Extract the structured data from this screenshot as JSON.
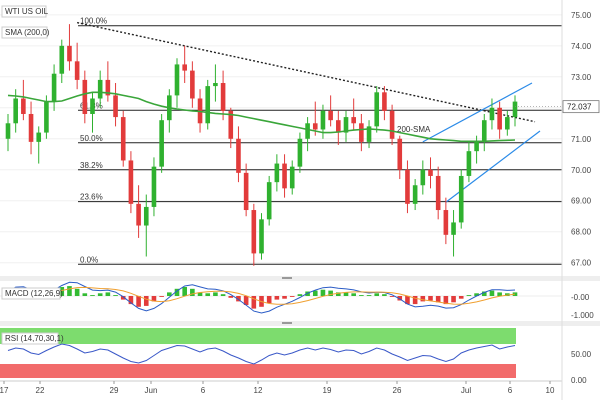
{
  "chart_data": [
    {
      "type": "candlestick",
      "legend": {
        "instrument": "WTI US OIL",
        "indicator": "SMA (200,0)"
      },
      "price_axis": {
        "ticks": [
          75.0,
          74.0,
          73.0,
          72.0,
          71.0,
          70.0,
          69.0,
          68.0,
          67.0
        ],
        "ylim": [
          66.7,
          75.35
        ]
      },
      "current_price": {
        "value": 72.037,
        "label": "72.037"
      },
      "fib_levels": [
        {
          "label": "100.0%",
          "price": 74.65
        },
        {
          "label": "61.8%",
          "price": 71.92
        },
        {
          "label": "50.0%",
          "price": 70.87
        },
        {
          "label": "38.2%",
          "price": 70.0
        },
        {
          "label": "23.6%",
          "price": 68.97
        },
        {
          "label": "0.0%",
          "price": 66.95
        }
      ],
      "annotation": "200-SMA",
      "x_axis": {
        "ticks": [
          "17",
          "22",
          "29",
          "Jun",
          "6",
          "12",
          "19",
          "26",
          "Jul",
          "6",
          "10"
        ]
      },
      "candles": [
        [
          71.0,
          71.8,
          70.6,
          71.5
        ],
        [
          71.5,
          72.6,
          71.2,
          72.3
        ],
        [
          72.3,
          72.9,
          71.6,
          71.8
        ],
        [
          71.8,
          72.2,
          70.5,
          70.9
        ],
        [
          70.9,
          71.4,
          70.2,
          71.2
        ],
        [
          71.2,
          72.4,
          71.0,
          72.2
        ],
        [
          72.2,
          73.4,
          71.9,
          73.1
        ],
        [
          73.1,
          74.2,
          72.8,
          74.0
        ],
        [
          74.0,
          74.7,
          73.2,
          73.5
        ],
        [
          73.5,
          74.1,
          72.6,
          72.9
        ],
        [
          72.9,
          73.2,
          71.5,
          71.8
        ],
        [
          71.8,
          72.5,
          71.2,
          72.3
        ],
        [
          72.3,
          73.2,
          72.0,
          72.9
        ],
        [
          72.9,
          73.5,
          72.2,
          72.4
        ],
        [
          72.4,
          72.8,
          71.4,
          71.7
        ],
        [
          71.7,
          71.9,
          70.1,
          70.3
        ],
        [
          70.3,
          70.6,
          68.6,
          68.9
        ],
        [
          68.9,
          69.5,
          67.8,
          68.2
        ],
        [
          68.2,
          69.2,
          67.2,
          68.8
        ],
        [
          68.8,
          70.4,
          68.5,
          70.1
        ],
        [
          70.1,
          71.8,
          69.9,
          71.6
        ],
        [
          71.6,
          72.6,
          71.2,
          72.4
        ],
        [
          72.4,
          73.6,
          72.0,
          73.4
        ],
        [
          73.4,
          74.0,
          72.8,
          73.2
        ],
        [
          73.2,
          73.5,
          72.0,
          72.3
        ],
        [
          72.3,
          72.6,
          71.2,
          71.5
        ],
        [
          71.5,
          72.9,
          71.3,
          72.7
        ],
        [
          72.7,
          73.4,
          72.2,
          72.8
        ],
        [
          72.8,
          73.2,
          71.6,
          71.9
        ],
        [
          71.9,
          72.0,
          70.7,
          71.0
        ],
        [
          71.0,
          71.4,
          69.6,
          69.9
        ],
        [
          69.9,
          70.2,
          68.5,
          68.7
        ],
        [
          68.7,
          68.9,
          66.9,
          67.3
        ],
        [
          67.3,
          68.6,
          67.1,
          68.4
        ],
        [
          68.4,
          69.8,
          68.2,
          69.6
        ],
        [
          69.6,
          70.5,
          69.3,
          70.2
        ],
        [
          70.2,
          70.5,
          69.1,
          69.4
        ],
        [
          69.4,
          70.3,
          69.2,
          70.1
        ],
        [
          70.1,
          71.2,
          69.9,
          71.0
        ],
        [
          71.0,
          71.7,
          70.6,
          71.5
        ],
        [
          71.5,
          72.2,
          71.1,
          71.3
        ],
        [
          71.3,
          72.1,
          71.0,
          71.9
        ],
        [
          71.9,
          72.4,
          71.4,
          71.6
        ],
        [
          71.6,
          71.9,
          70.8,
          71.2
        ],
        [
          71.2,
          71.9,
          70.9,
          71.7
        ],
        [
          71.7,
          72.3,
          71.3,
          71.5
        ],
        [
          71.5,
          71.8,
          70.6,
          70.9
        ],
        [
          70.9,
          71.6,
          70.7,
          71.4
        ],
        [
          71.4,
          72.7,
          71.2,
          72.5
        ],
        [
          72.5,
          72.7,
          71.6,
          71.9
        ],
        [
          71.9,
          72.1,
          70.8,
          71.0
        ],
        [
          71.0,
          71.1,
          69.7,
          70.0
        ],
        [
          70.0,
          70.3,
          68.6,
          68.9
        ],
        [
          68.9,
          69.7,
          68.7,
          69.5
        ],
        [
          69.5,
          70.3,
          69.2,
          70.0
        ],
        [
          70.0,
          70.4,
          69.4,
          69.8
        ],
        [
          69.8,
          70.1,
          68.4,
          68.7
        ],
        [
          68.7,
          69.1,
          67.6,
          67.9
        ],
        [
          67.9,
          68.7,
          67.2,
          68.3
        ],
        [
          68.3,
          70.0,
          68.1,
          69.8
        ],
        [
          69.8,
          70.9,
          69.6,
          70.6
        ],
        [
          70.6,
          71.1,
          70.2,
          70.9
        ],
        [
          70.9,
          71.8,
          70.6,
          71.6
        ],
        [
          71.6,
          72.3,
          71.3,
          72.0
        ],
        [
          72.0,
          72.2,
          71.0,
          71.3
        ],
        [
          71.3,
          71.9,
          71.1,
          71.7
        ],
        [
          71.7,
          72.4,
          71.4,
          72.2
        ]
      ],
      "sma_200": [
        72.4,
        72.38,
        72.35,
        72.3,
        72.25,
        72.2,
        72.2,
        72.22,
        72.3,
        72.38,
        72.45,
        72.5,
        72.5,
        72.48,
        72.45,
        72.4,
        72.35,
        72.3,
        72.2,
        72.12,
        72.05,
        72.0,
        71.96,
        71.93,
        71.9,
        71.88,
        71.85,
        71.82,
        71.8,
        71.78,
        71.75,
        71.7,
        71.65,
        71.6,
        71.55,
        71.5,
        71.45,
        71.4,
        71.35,
        71.3,
        71.25,
        71.2,
        71.2,
        71.22,
        71.25,
        71.28,
        71.3,
        71.32,
        71.3,
        71.28,
        71.25,
        71.2,
        71.15,
        71.1,
        71.05,
        71.0,
        70.98,
        70.96,
        70.94,
        70.92,
        70.92,
        70.92,
        70.92,
        70.93,
        70.94,
        70.95,
        70.96
      ]
    },
    {
      "type": "macd",
      "label": "MACD (12,26,9)",
      "axis_ticks": [
        "-0.00",
        "-1.000"
      ],
      "histogram": [
        0.3,
        0.45,
        0.3,
        0.1,
        -0.05,
        0.1,
        0.3,
        0.5,
        0.55,
        0.4,
        0.15,
        0.05,
        0.15,
        0.2,
        0.05,
        -0.2,
        -0.45,
        -0.6,
        -0.55,
        -0.3,
        -0.05,
        0.2,
        0.4,
        0.5,
        0.4,
        0.2,
        0.15,
        0.2,
        0.1,
        -0.1,
        -0.3,
        -0.5,
        -0.7,
        -0.6,
        -0.4,
        -0.2,
        -0.15,
        -0.05,
        0.1,
        0.25,
        0.3,
        0.35,
        0.3,
        0.2,
        0.2,
        0.15,
        0.05,
        0.05,
        0.15,
        0.1,
        -0.05,
        -0.25,
        -0.45,
        -0.45,
        -0.3,
        -0.25,
        -0.35,
        -0.45,
        -0.35,
        -0.15,
        0.05,
        0.15,
        0.25,
        0.3,
        0.2,
        0.15,
        0.2
      ]
    },
    {
      "type": "rsi",
      "label": "RSI (14,70,30,1)",
      "axis_ticks": [
        "50.00",
        "0.00"
      ],
      "values": [
        55,
        60,
        58,
        50,
        47,
        55,
        62,
        68,
        65,
        58,
        50,
        53,
        58,
        56,
        48,
        40,
        33,
        30,
        35,
        45,
        55,
        60,
        65,
        64,
        58,
        52,
        58,
        60,
        54,
        46,
        40,
        33,
        28,
        36,
        45,
        50,
        46,
        50,
        56,
        60,
        56,
        60,
        57,
        52,
        56,
        55,
        48,
        53,
        60,
        56,
        48,
        42,
        35,
        40,
        45,
        44,
        38,
        33,
        38,
        50,
        56,
        60,
        63,
        66,
        58,
        62,
        65
      ]
    }
  ]
}
